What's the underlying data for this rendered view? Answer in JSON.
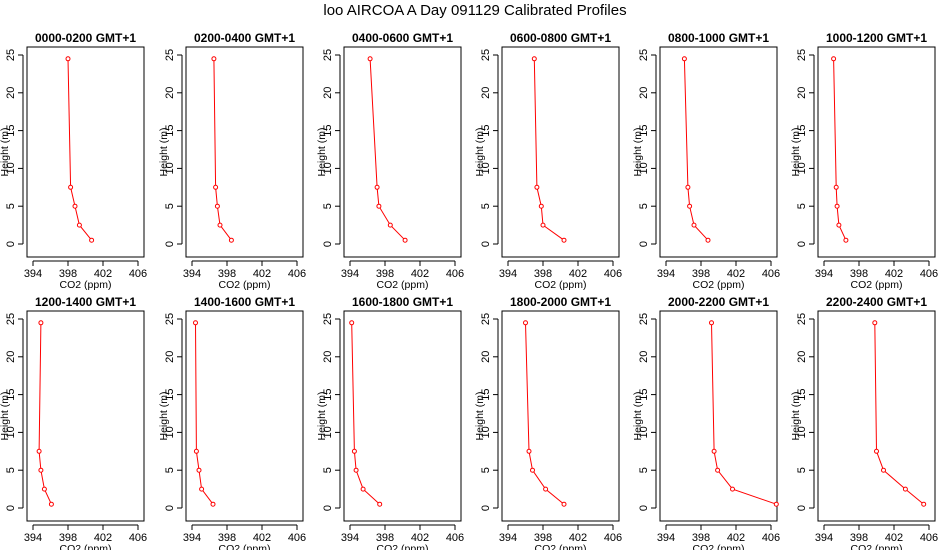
{
  "page": {
    "title": "loo AIRCOA A  Day 091129  Calibrated Profiles"
  },
  "style": {
    "line_color": "#ff0000",
    "axis_color": "#000000"
  },
  "chart_data": {
    "type": "line",
    "grid": false,
    "xlabel": "CO2 (ppm)",
    "ylabel": "Height (m)",
    "xlim": [
      394,
      406
    ],
    "ylim": [
      0,
      25
    ],
    "xticks": [
      394,
      398,
      402,
      406
    ],
    "yticks": [
      0,
      5,
      10,
      15,
      20,
      25
    ],
    "heights": [
      24.5,
      7.5,
      5.0,
      2.5,
      0.5
    ],
    "panels": [
      {
        "title": "0000-0200 GMT+1",
        "x": [
          398.0,
          398.3,
          398.8,
          399.3,
          400.7
        ]
      },
      {
        "title": "0200-0400 GMT+1",
        "x": [
          396.5,
          396.7,
          396.9,
          397.2,
          398.5
        ]
      },
      {
        "title": "0400-0600 GMT+1",
        "x": [
          396.3,
          397.1,
          397.3,
          398.6,
          400.3
        ]
      },
      {
        "title": "0600-0800 GMT+1",
        "x": [
          397.0,
          397.3,
          397.8,
          398.0,
          400.4
        ]
      },
      {
        "title": "0800-1000 GMT+1",
        "x": [
          396.1,
          396.5,
          396.7,
          397.2,
          398.8
        ]
      },
      {
        "title": "1000-1200 GMT+1",
        "x": [
          395.1,
          395.4,
          395.5,
          395.7,
          396.5
        ]
      },
      {
        "title": "1200-1400 GMT+1",
        "x": [
          394.9,
          394.7,
          394.9,
          395.3,
          396.1
        ]
      },
      {
        "title": "1400-1600 GMT+1",
        "x": [
          394.4,
          394.5,
          394.8,
          395.1,
          396.4
        ]
      },
      {
        "title": "1600-1800 GMT+1",
        "x": [
          394.2,
          394.5,
          394.7,
          395.5,
          397.4
        ]
      },
      {
        "title": "1800-2000 GMT+1",
        "x": [
          396.0,
          396.4,
          396.8,
          398.3,
          400.4
        ]
      },
      {
        "title": "2000-2200 GMT+1",
        "x": [
          399.2,
          399.5,
          399.9,
          401.6,
          406.6
        ]
      },
      {
        "title": "2200-2400 GMT+1",
        "x": [
          399.8,
          400.0,
          400.8,
          403.3,
          405.4
        ]
      }
    ]
  }
}
